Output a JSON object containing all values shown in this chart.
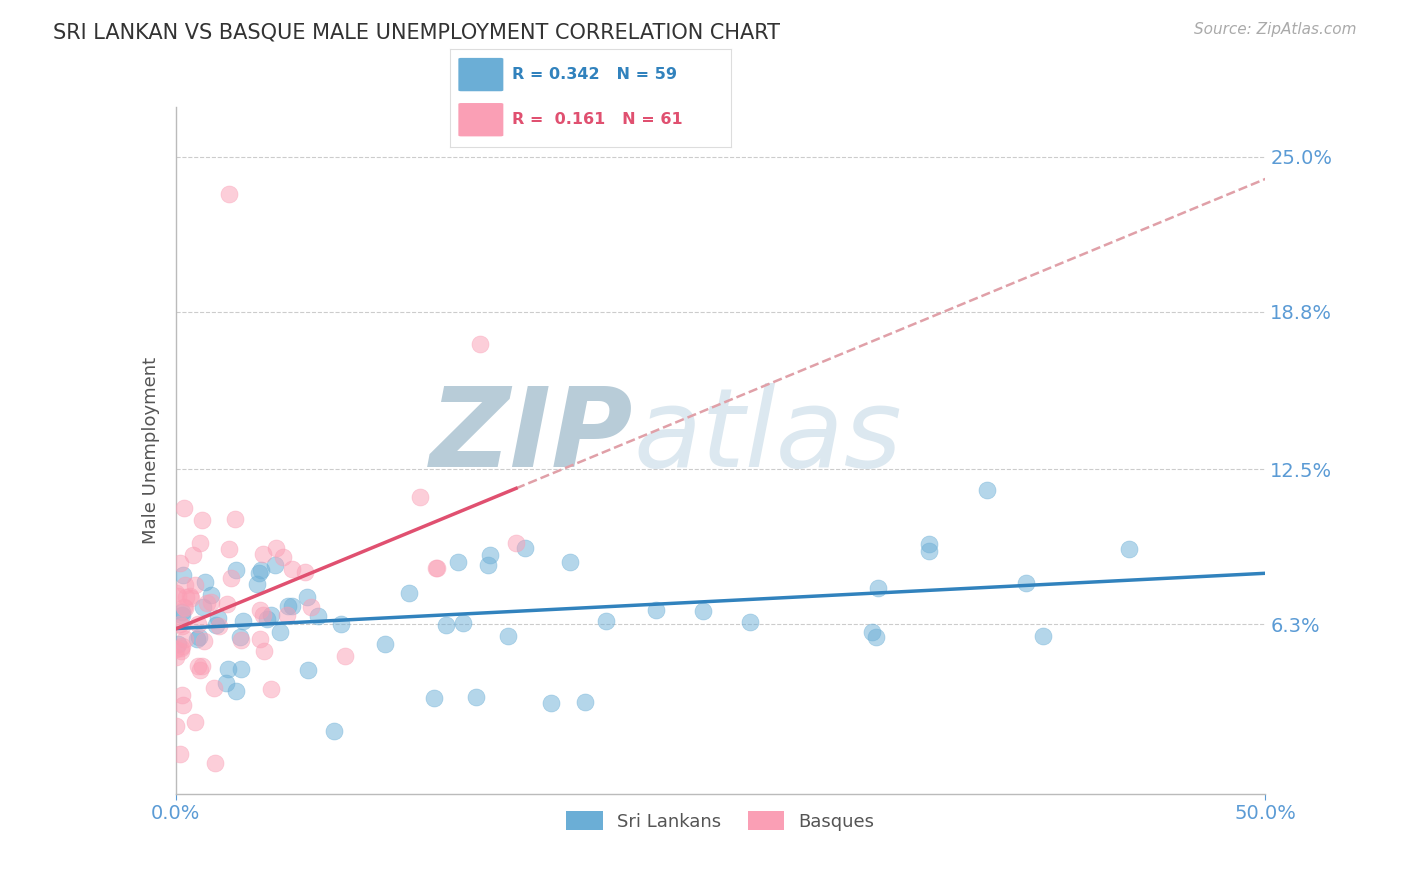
{
  "title": "SRI LANKAN VS BASQUE MALE UNEMPLOYMENT CORRELATION CHART",
  "source_text": "Source: ZipAtlas.com",
  "ylabel": "Male Unemployment",
  "xlim": [
    0.0,
    0.5
  ],
  "ylim": [
    -0.005,
    0.27
  ],
  "yticks": [
    0.063,
    0.125,
    0.188,
    0.25
  ],
  "ytick_labels": [
    "6.3%",
    "12.5%",
    "18.8%",
    "25.0%"
  ],
  "xticks": [
    0.0,
    0.5
  ],
  "xtick_labels": [
    "0.0%",
    "50.0%"
  ],
  "legend_color1": "#6baed6",
  "legend_color2": "#fa9fb5",
  "sri_lankan_color": "#6baed6",
  "basque_color": "#fa9fb5",
  "sri_lankan_line_color": "#3182bd",
  "basque_line_color": "#e05070",
  "dashed_line_color": "#e0a0a8",
  "background_color": "#ffffff",
  "grid_color": "#cccccc",
  "title_color": "#333333",
  "axis_label_color": "#555555",
  "tick_color": "#5b9bd5",
  "watermark_color": "#dce8f0",
  "watermark_zip_color": "#b8ccd8",
  "right_tick_color": "#5b9bd5"
}
